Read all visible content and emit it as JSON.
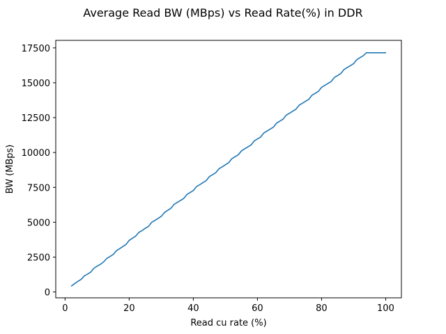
{
  "chart_data": {
    "type": "line",
    "title": "Average Read BW (MBps) vs Read Rate(%) in DDR",
    "xlabel": "Read cu rate (%)",
    "ylabel": "BW (MBps)",
    "xlim": [
      -2.9,
      104.9
    ],
    "ylim": [
      -420,
      18040
    ],
    "xticks": [
      0,
      20,
      40,
      60,
      80,
      100
    ],
    "yticks": [
      0,
      2500,
      5000,
      7500,
      10000,
      12500,
      15000,
      17500
    ],
    "grid": false,
    "line_color": "#1f77b4",
    "series": [
      {
        "x": [
          2,
          3,
          4,
          5,
          6,
          7,
          8,
          9,
          10,
          11,
          12,
          13,
          14,
          15,
          16,
          17,
          18,
          19,
          20,
          21,
          22,
          23,
          24,
          25,
          26,
          27,
          28,
          29,
          30,
          31,
          32,
          33,
          34,
          35,
          36,
          37,
          38,
          39,
          40,
          41,
          42,
          43,
          44,
          45,
          46,
          47,
          48,
          49,
          50,
          51,
          52,
          53,
          54,
          55,
          56,
          57,
          58,
          59,
          60,
          61,
          62,
          63,
          64,
          65,
          66,
          67,
          68,
          69,
          70,
          71,
          72,
          73,
          74,
          75,
          76,
          77,
          78,
          79,
          80,
          81,
          82,
          83,
          84,
          85,
          86,
          87,
          88,
          89,
          90,
          91,
          92,
          93,
          94,
          95,
          96,
          97,
          98,
          99,
          100
        ],
        "values": [
          430,
          600,
          760,
          900,
          1150,
          1280,
          1420,
          1700,
          1850,
          1980,
          2150,
          2400,
          2540,
          2680,
          2950,
          3100,
          3250,
          3400,
          3700,
          3850,
          4000,
          4270,
          4400,
          4560,
          4700,
          4990,
          5130,
          5270,
          5420,
          5700,
          5850,
          6000,
          6280,
          6420,
          6560,
          6700,
          6990,
          7130,
          7270,
          7550,
          7690,
          7840,
          7980,
          8270,
          8410,
          8550,
          8830,
          8970,
          9120,
          9260,
          9550,
          9690,
          9830,
          10110,
          10260,
          10400,
          10540,
          10830,
          10970,
          11110,
          11400,
          11540,
          11680,
          11820,
          12110,
          12250,
          12390,
          12680,
          12820,
          12960,
          13100,
          13390,
          13530,
          13670,
          13810,
          14100,
          14240,
          14380,
          14670,
          14810,
          14950,
          15090,
          15380,
          15520,
          15660,
          15950,
          16090,
          16230,
          16370,
          16660,
          16800,
          16940,
          17150,
          17150,
          17150,
          17150,
          17150,
          17150,
          17150
        ]
      }
    ]
  }
}
